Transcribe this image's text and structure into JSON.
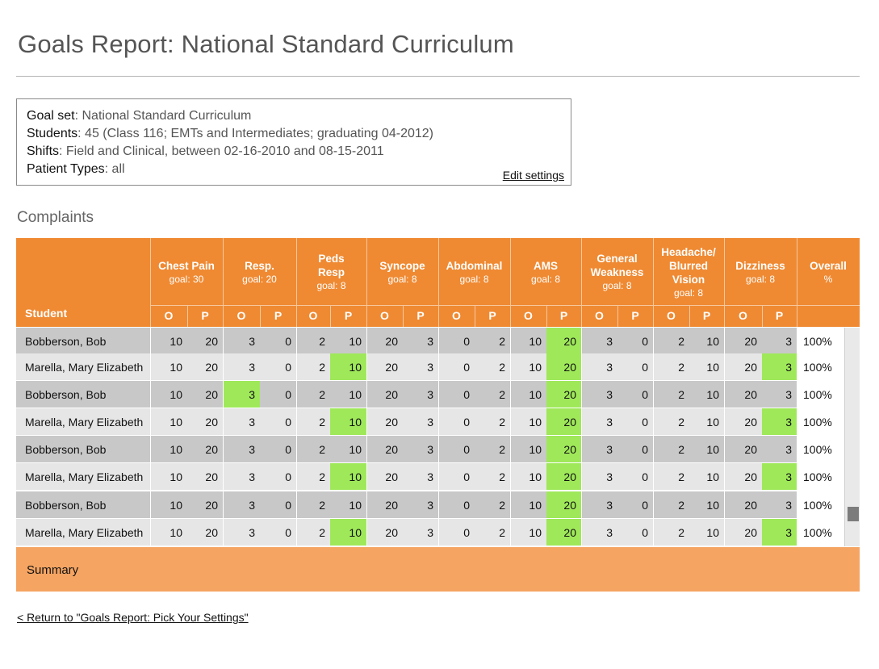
{
  "page": {
    "title": "Goals Report: National Standard Curriculum"
  },
  "settings": {
    "lines": [
      {
        "label": "Goal set",
        "value": ": National Standard Curriculum"
      },
      {
        "label": "Students",
        "value": ": 45 (Class 116; EMTs and Intermediates; graduating 04-2012)"
      },
      {
        "label": "Shifts",
        "value": ": Field and Clinical, between 02-16-2010 and 08-15-2011"
      },
      {
        "label": "Patient Types",
        "value": ": all"
      }
    ],
    "edit_label": "Edit settings"
  },
  "section": {
    "heading": "Complaints"
  },
  "table": {
    "student_header": "Student",
    "sub_o": "O",
    "sub_p": "P",
    "groups": [
      {
        "lines": [
          "Chest Pain"
        ],
        "goal": "goal: 30"
      },
      {
        "lines": [
          "Resp."
        ],
        "goal": "goal: 20"
      },
      {
        "lines": [
          "Peds",
          "Resp"
        ],
        "goal": "goal: 8"
      },
      {
        "lines": [
          "Syncope"
        ],
        "goal": "goal: 8"
      },
      {
        "lines": [
          "Abdominal"
        ],
        "goal": "goal: 8"
      },
      {
        "lines": [
          "AMS"
        ],
        "goal": "goal: 8"
      },
      {
        "lines": [
          "General",
          "Weakness"
        ],
        "goal": "goal: 8"
      },
      {
        "lines": [
          "Headache/",
          "Blurred",
          "Vision"
        ],
        "goal": "goal: 8"
      },
      {
        "lines": [
          "Dizziness"
        ],
        "goal": "goal: 8"
      }
    ],
    "overall": {
      "label": "Overall",
      "unit": "%"
    },
    "rows": [
      {
        "name": "Bobberson, Bob",
        "values": [
          "10",
          "20",
          "3",
          "0",
          "2",
          "10",
          "20",
          "3",
          "0",
          "2",
          "10",
          "20",
          "3",
          "0",
          "2",
          "10",
          "20",
          "3"
        ],
        "overall": "100%",
        "met": [
          11
        ]
      },
      {
        "name": "Marella, Mary Elizabeth",
        "values": [
          "10",
          "20",
          "3",
          "0",
          "2",
          "10",
          "20",
          "3",
          "0",
          "2",
          "10",
          "20",
          "3",
          "0",
          "2",
          "10",
          "20",
          "3"
        ],
        "overall": "100%",
        "met": [
          5,
          11,
          17
        ]
      },
      {
        "name": "Bobberson, Bob",
        "values": [
          "10",
          "20",
          "3",
          "0",
          "2",
          "10",
          "20",
          "3",
          "0",
          "2",
          "10",
          "20",
          "3",
          "0",
          "2",
          "10",
          "20",
          "3"
        ],
        "overall": "100%",
        "met": [
          2,
          11
        ]
      },
      {
        "name": "Marella, Mary Elizabeth",
        "values": [
          "10",
          "20",
          "3",
          "0",
          "2",
          "10",
          "20",
          "3",
          "0",
          "2",
          "10",
          "20",
          "3",
          "0",
          "2",
          "10",
          "20",
          "3"
        ],
        "overall": "100%",
        "met": [
          5,
          11,
          17
        ]
      },
      {
        "name": "Bobberson, Bob",
        "values": [
          "10",
          "20",
          "3",
          "0",
          "2",
          "10",
          "20",
          "3",
          "0",
          "2",
          "10",
          "20",
          "3",
          "0",
          "2",
          "10",
          "20",
          "3"
        ],
        "overall": "100%",
        "met": [
          11
        ]
      },
      {
        "name": "Marella, Mary Elizabeth",
        "values": [
          "10",
          "20",
          "3",
          "0",
          "2",
          "10",
          "20",
          "3",
          "0",
          "2",
          "10",
          "20",
          "3",
          "0",
          "2",
          "10",
          "20",
          "3"
        ],
        "overall": "100%",
        "met": [
          5,
          11,
          17
        ]
      },
      {
        "name": "Bobberson, Bob",
        "values": [
          "10",
          "20",
          "3",
          "0",
          "2",
          "10",
          "20",
          "3",
          "0",
          "2",
          "10",
          "20",
          "3",
          "0",
          "2",
          "10",
          "20",
          "3"
        ],
        "overall": "100%",
        "met": [
          11
        ]
      },
      {
        "name": "Marella, Mary Elizabeth",
        "values": [
          "10",
          "20",
          "3",
          "0",
          "2",
          "10",
          "20",
          "3",
          "0",
          "2",
          "10",
          "20",
          "3",
          "0",
          "2",
          "10",
          "20",
          "3"
        ],
        "overall": "100%",
        "met": [
          5,
          11,
          17
        ]
      }
    ]
  },
  "summary": {
    "label": "Summary"
  },
  "nav": {
    "return_label": "< Return to \"Goals Report: Pick Your Settings\""
  },
  "colors": {
    "header_orange": "#ef8a33",
    "summary_orange": "#f5a462",
    "goal_met_green": "#9fe85a",
    "row_dark": "#c8c8c8",
    "row_light": "#e6e6e6"
  }
}
